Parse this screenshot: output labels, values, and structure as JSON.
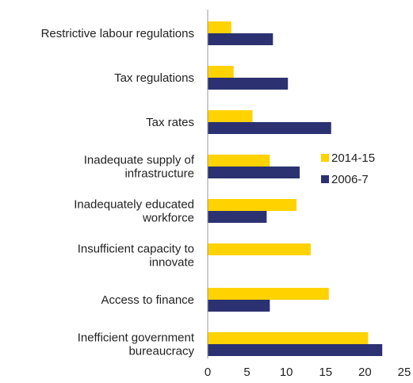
{
  "chart_data": {
    "type": "bar",
    "orientation": "horizontal",
    "categories": [
      [
        "Restrictive labour regulations"
      ],
      [
        "Tax regulations"
      ],
      [
        "Tax rates"
      ],
      [
        "Inadequate supply of",
        "infrastructure"
      ],
      [
        "Inadequately educated",
        "workforce"
      ],
      [
        "Insufficient capacity to",
        "innovate"
      ],
      [
        "Access to finance"
      ],
      [
        "Inefficient government",
        "bureaucracy"
      ]
    ],
    "series": [
      {
        "name": "2014-15",
        "color": "#FFD200",
        "values": [
          3.0,
          3.3,
          5.7,
          7.9,
          11.3,
          13.1,
          15.4,
          20.4
        ]
      },
      {
        "name": "2006-7",
        "color": "#2B3171",
        "values": [
          8.3,
          10.2,
          15.7,
          11.7,
          7.5,
          0,
          7.9,
          22.2
        ]
      }
    ],
    "xlim": [
      0,
      25
    ],
    "xticks": [
      0,
      5,
      10,
      15,
      20,
      25
    ],
    "grid": false,
    "legend_position": "right"
  }
}
